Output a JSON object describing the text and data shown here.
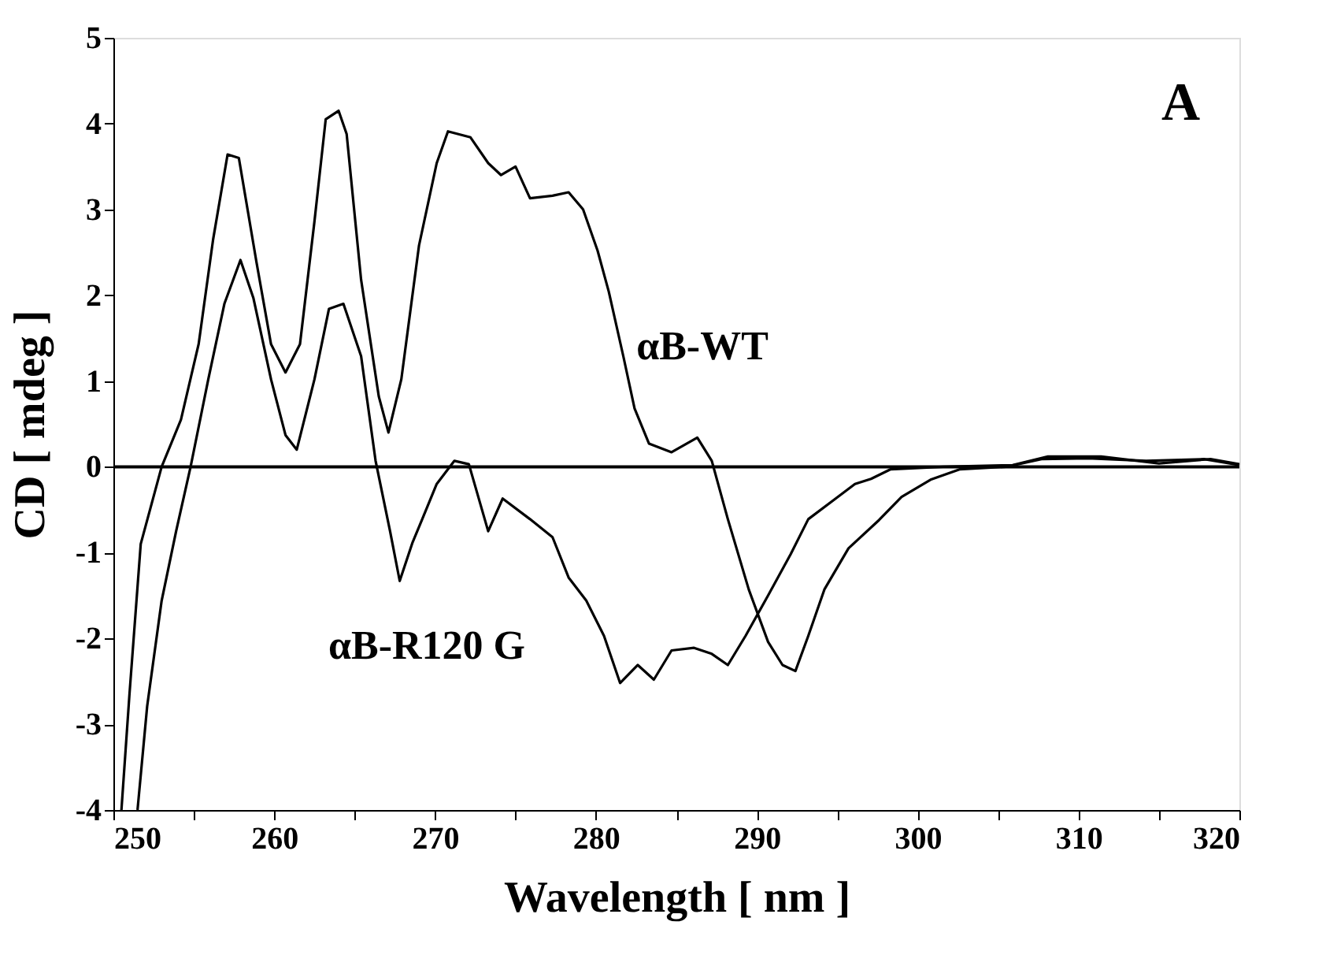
{
  "chart_data": {
    "type": "line",
    "xlabel": "Wavelength [ nm ]",
    "ylabel": "CD  [ mdeg ]",
    "xlim": [
      250,
      320
    ],
    "ylim": [
      -4,
      5
    ],
    "xticks": [
      250,
      {
        "value": 255,
        "label": null
      },
      260,
      {
        "value": 265,
        "label": null
      },
      270,
      {
        "value": 275,
        "label": null
      },
      280,
      {
        "value": 285,
        "label": null
      },
      290,
      {
        "value": 295,
        "label": null
      },
      300,
      {
        "value": 305,
        "label": null
      },
      310,
      {
        "value": 315,
        "label": null
      },
      320
    ],
    "yticks": [
      -4,
      -3,
      -2,
      -1,
      0,
      1,
      2,
      3,
      4,
      5
    ],
    "marker": "none",
    "line_style": "solid",
    "ref_lines": [
      {
        "axis": "y",
        "value": 0,
        "color": "#000000"
      }
    ],
    "annotations": [
      "αB-WT",
      "αB-R120 G",
      "A"
    ],
    "series": [
      {
        "color": "#000000",
        "x": [
          250.5,
          251,
          251.7,
          253.0,
          254.2,
          255.3,
          256.2,
          257.1,
          257.8,
          258.9,
          259.8,
          260.7,
          261.6,
          262.5,
          263.2,
          264.0,
          264.5,
          265.4,
          266.5,
          267.1,
          267.9,
          269.0,
          270.1,
          270.8,
          272.2,
          273.3,
          274.1,
          275.0,
          275.9,
          277.3,
          278.3,
          279.2,
          280.1,
          280.8,
          281.7,
          282.4,
          283.3,
          284.7,
          286.3,
          287.2,
          288.2,
          289.5,
          290.7,
          291.6,
          292.4,
          293.2,
          294.2,
          295.7,
          297.6,
          299.0,
          300.8,
          302.6,
          305.5,
          307.7,
          310.6,
          314.2,
          317.8,
          320
        ],
        "values": [
          -4.0,
          -2.65,
          -0.9,
          0,
          0.55,
          1.43,
          2.65,
          3.64,
          3.6,
          2.38,
          1.43,
          1.1,
          1.43,
          2.86,
          4.05,
          4.15,
          3.88,
          2.18,
          0.82,
          0.4,
          1.02,
          2.58,
          3.54,
          3.91,
          3.84,
          3.54,
          3.4,
          3.5,
          3.13,
          3.16,
          3.2,
          3.0,
          2.52,
          2.04,
          1.29,
          0.68,
          0.27,
          0.17,
          0.34,
          0.07,
          -0.61,
          -1.43,
          -2.04,
          -2.31,
          -2.38,
          -1.97,
          -1.43,
          -0.95,
          -0.62,
          -0.35,
          -0.15,
          -0.03,
          0,
          0.09,
          0.1,
          0.07,
          0.09,
          0.02
        ]
      },
      {
        "color": "#000000",
        "x": [
          251.5,
          252.1,
          253.0,
          253.9,
          254.8,
          255.9,
          256.9,
          257.9,
          258.7,
          259.8,
          260.7,
          261.4,
          262.5,
          263.4,
          264.3,
          265.4,
          266.3,
          267.2,
          267.8,
          268.6,
          269.2,
          270.1,
          271.2,
          272.1,
          273.3,
          274.2,
          275.9,
          277.3,
          278.3,
          279.4,
          280.5,
          281.5,
          282.6,
          283.6,
          284.7,
          286.1,
          287.2,
          288.2,
          289.3,
          290.7,
          292.1,
          293.2,
          294.9,
          296.1,
          297.1,
          298.3,
          301.6,
          305.9,
          308.1,
          311.4,
          315,
          318.2,
          320
        ],
        "values": [
          -4.0,
          -2.79,
          -1.56,
          -0.75,
          0,
          1.02,
          1.9,
          2.41,
          1.97,
          1.02,
          0.37,
          0.2,
          1.02,
          1.84,
          1.9,
          1.29,
          0.07,
          -0.75,
          -1.33,
          -0.88,
          -0.61,
          -0.2,
          0.07,
          0.03,
          -0.75,
          -0.37,
          -0.61,
          -0.82,
          -1.29,
          -1.56,
          -1.97,
          -2.52,
          -2.31,
          -2.48,
          -2.14,
          -2.11,
          -2.18,
          -2.31,
          -1.97,
          -1.5,
          -1.02,
          -0.61,
          -0.37,
          -0.2,
          -0.14,
          -0.03,
          0,
          0.02,
          0.12,
          0.12,
          0.04,
          0.09,
          0.03
        ]
      }
    ]
  }
}
